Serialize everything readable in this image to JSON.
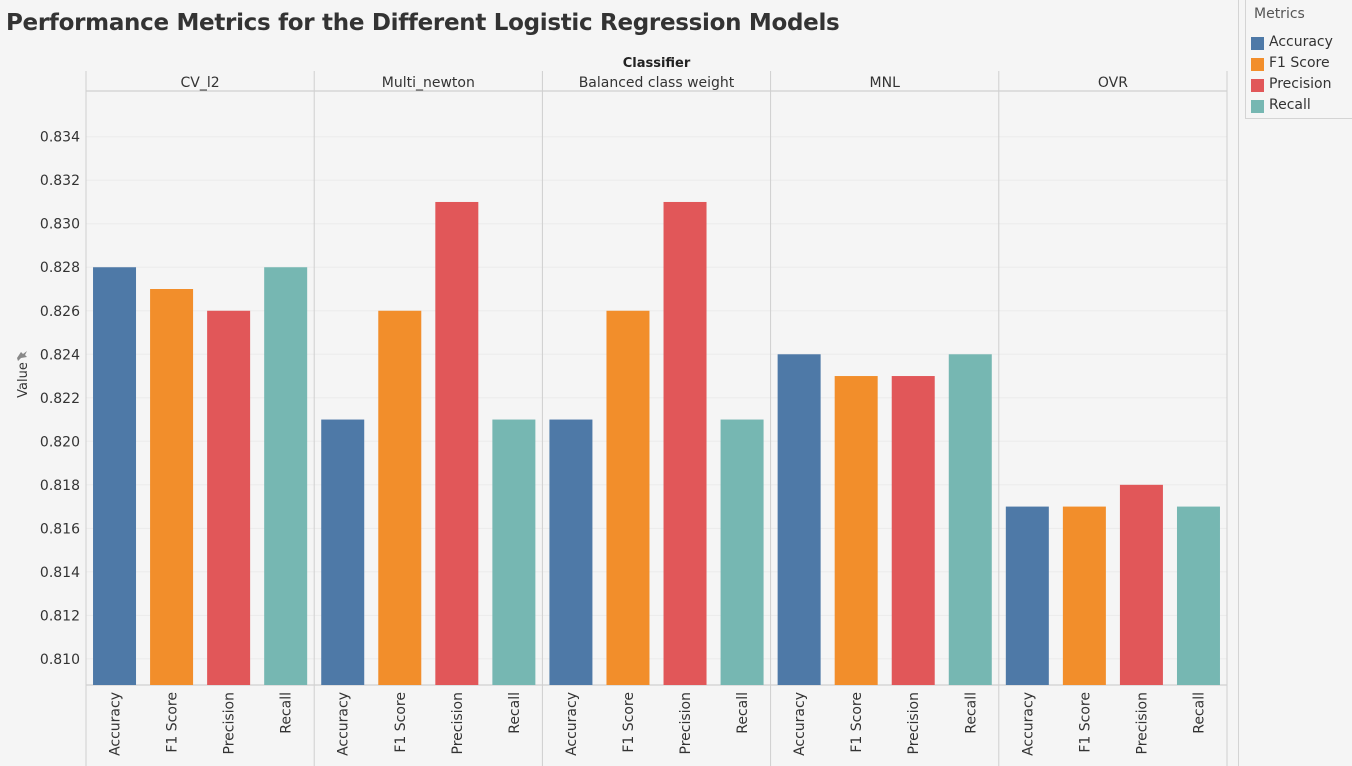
{
  "title": "Performance Metrics for the Different Logistic Regression Models",
  "legend": {
    "title": "Metrics",
    "items": [
      {
        "label": "Accuracy",
        "color": "#4e79a7"
      },
      {
        "label": "F1 Score",
        "color": "#f28e2b"
      },
      {
        "label": "Precision",
        "color": "#e15759"
      },
      {
        "label": "Recall",
        "color": "#76b7b2"
      }
    ]
  },
  "chart_data": {
    "type": "bar",
    "title": "Performance Metrics for the Different Logistic Regression Models",
    "column_header": "Classifier",
    "ylabel": "Value",
    "ylim": [
      0.8088,
      0.8361
    ],
    "yticks": [
      "0.810",
      "0.812",
      "0.814",
      "0.816",
      "0.818",
      "0.820",
      "0.822",
      "0.824",
      "0.826",
      "0.828",
      "0.830",
      "0.832",
      "0.834"
    ],
    "categories": [
      "Accuracy",
      "F1 Score",
      "Precision",
      "Recall"
    ],
    "groups": [
      {
        "name": "CV_l2",
        "values": [
          0.828,
          0.827,
          0.826,
          0.828
        ]
      },
      {
        "name": "Multi_newton",
        "values": [
          0.821,
          0.826,
          0.831,
          0.821
        ]
      },
      {
        "name": "Balanced class weight",
        "values": [
          0.821,
          0.826,
          0.831,
          0.821
        ]
      },
      {
        "name": "MNL",
        "values": [
          0.824,
          0.823,
          0.823,
          0.824
        ]
      },
      {
        "name": "OVR",
        "values": [
          0.817,
          0.817,
          0.818,
          0.817
        ]
      }
    ],
    "grid": true,
    "legend_position": "top-right"
  }
}
